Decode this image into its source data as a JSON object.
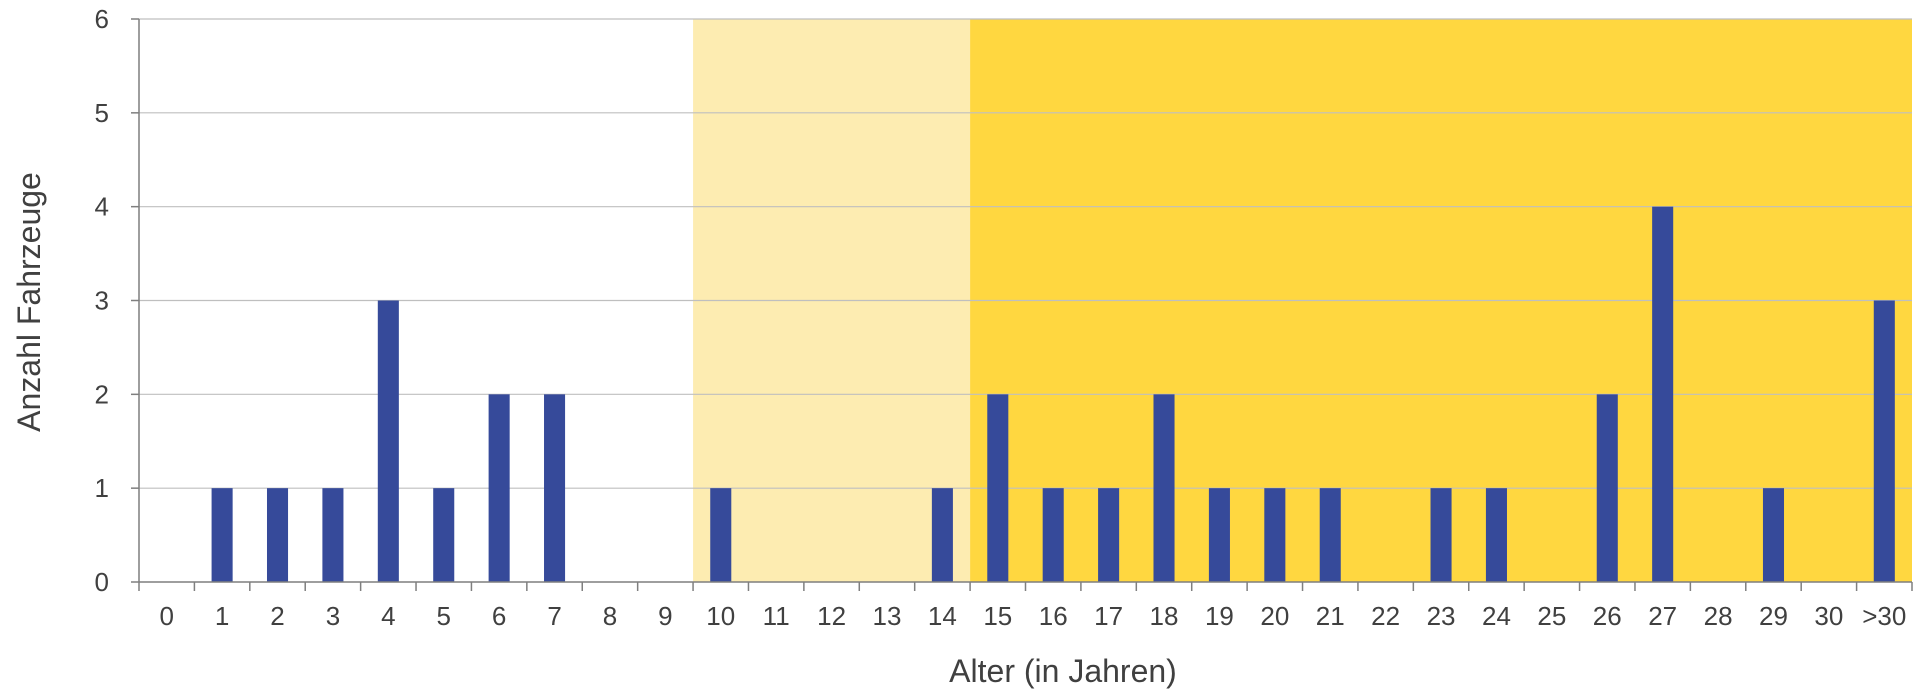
{
  "chart_data": {
    "type": "bar",
    "xlabel": "Alter (in Jahren)",
    "ylabel": "Anzahl Fahrzeuge",
    "ylim": [
      0,
      6
    ],
    "yticks": [
      0,
      1,
      2,
      3,
      4,
      5,
      6
    ],
    "grid": true,
    "categories": [
      "0",
      "1",
      "2",
      "3",
      "4",
      "5",
      "6",
      "7",
      "8",
      "9",
      "10",
      "11",
      "12",
      "13",
      "14",
      "15",
      "16",
      "17",
      "18",
      "19",
      "20",
      "21",
      "22",
      "23",
      "24",
      "25",
      "26",
      "27",
      "28",
      "29",
      "30",
      ">30"
    ],
    "values": [
      0,
      1,
      1,
      1,
      3,
      1,
      2,
      2,
      0,
      0,
      1,
      0,
      0,
      0,
      1,
      2,
      1,
      1,
      2,
      1,
      1,
      1,
      0,
      1,
      1,
      0,
      2,
      4,
      0,
      1,
      0,
      3
    ],
    "bands": [
      {
        "from": "10",
        "to": "14",
        "color": "#FDECB1"
      },
      {
        "from": "15",
        "to": ">30",
        "color": "#FFD740"
      }
    ],
    "bar_color": "#364A9A"
  }
}
